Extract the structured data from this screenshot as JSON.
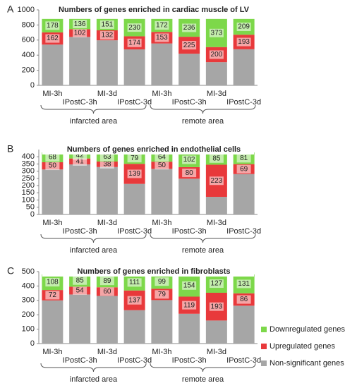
{
  "chart_data": [
    {
      "type": "bar",
      "stacked": true,
      "panel": "A",
      "title": "Numbers of genes enriched in cardiac muscle of LV",
      "categories": [
        "MI-3h",
        "IPostC-3h",
        "MI-3d",
        "IPostC-3d",
        "MI-3h",
        "IPostC-3h",
        "MI-3d",
        "IPostC-3d"
      ],
      "groups": [
        "infarcted area",
        "remote area"
      ],
      "series": [
        {
          "color": "#a6a6a6",
          "values": [
            540,
            642,
            597,
            476,
            555,
            419,
            307,
            478
          ]
        },
        {
          "color": "#e8393b",
          "values": [
            162,
            102,
            132,
            174,
            153,
            225,
            200,
            193
          ],
          "labeled": true
        },
        {
          "color": "#7dd84a",
          "values": [
            178,
            136,
            151,
            230,
            172,
            236,
            373,
            209
          ],
          "labeled": true
        }
      ],
      "ylim": [
        0,
        1000
      ],
      "yticks": [
        0,
        200,
        400,
        600,
        800,
        1000
      ]
    },
    {
      "type": "bar",
      "stacked": true,
      "panel": "B",
      "title": "Numbers of genes enriched in endothelial cells",
      "categories": [
        "MI-3h",
        "IPostC-3h",
        "MI-3d",
        "IPostC-3d",
        "MI-3h",
        "IPostC-3h",
        "MI-3d",
        "IPostC-3d"
      ],
      "groups": [
        "infarcted area",
        "remote area"
      ],
      "series": [
        {
          "color": "#a6a6a6",
          "values": [
            312,
            347,
            329,
            212,
            316,
            248,
            122,
            280
          ]
        },
        {
          "color": "#e8393b",
          "values": [
            50,
            41,
            38,
            139,
            50,
            80,
            223,
            69
          ],
          "labeled": true
        },
        {
          "color": "#7dd84a",
          "values": [
            68,
            42,
            63,
            79,
            64,
            102,
            85,
            81
          ],
          "labeled": true
        }
      ],
      "ylim": [
        0,
        450
      ],
      "yticks": [
        0,
        50,
        100,
        150,
        200,
        250,
        300,
        350,
        400
      ]
    },
    {
      "type": "bar",
      "stacked": true,
      "panel": "C",
      "title": "Numbers of genes enriched in fibroblasts",
      "categories": [
        "MI-3h",
        "IPostC-3h",
        "MI-3d",
        "IPostC-3d",
        "MI-3h",
        "IPostC-3h",
        "MI-3d",
        "IPostC-3d"
      ],
      "groups": [
        "infarcted area",
        "remote area"
      ],
      "series": [
        {
          "name": "Non-significant genes",
          "color": "#a6a6a6",
          "values": [
            300,
            341,
            331,
            232,
            302,
            207,
            160,
            263
          ]
        },
        {
          "name": "Upregulated genes",
          "color": "#e8393b",
          "values": [
            72,
            54,
            60,
            137,
            79,
            119,
            193,
            86
          ],
          "labeled": true
        },
        {
          "name": "Downregulated genes",
          "color": "#7dd84a",
          "values": [
            108,
            85,
            89,
            111,
            99,
            154,
            127,
            131
          ],
          "labeled": true
        }
      ],
      "ylim": [
        0,
        500
      ],
      "yticks": [
        0,
        100,
        200,
        300,
        400,
        500
      ]
    }
  ]
}
